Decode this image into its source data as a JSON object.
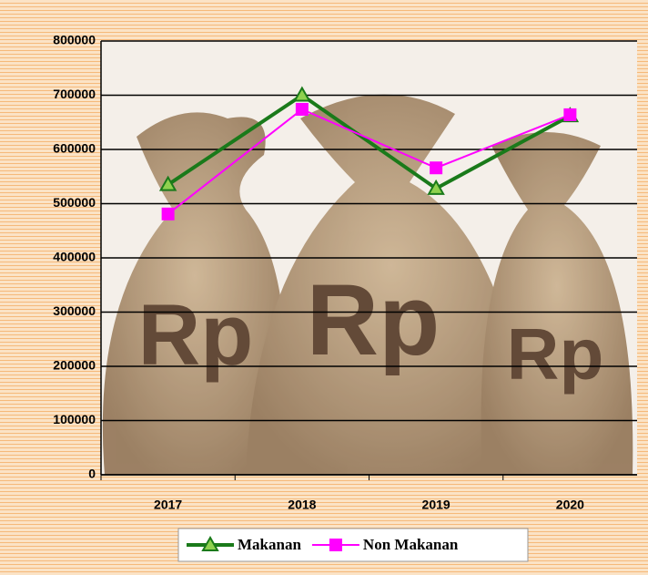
{
  "chart_data": {
    "type": "line",
    "categories": [
      "2017",
      "2018",
      "2019",
      "2020"
    ],
    "series": [
      {
        "name": "Makanan",
        "color": "#1a7a1a",
        "marker": "triangle",
        "marker_color": "#8fd14f",
        "values": [
          535000,
          700000,
          528000,
          662000
        ]
      },
      {
        "name": "Non Makanan",
        "color": "#ff00ff",
        "marker": "square",
        "marker_color": "#ff00ff",
        "values": [
          481000,
          674000,
          566000,
          664000
        ]
      }
    ],
    "ylim": [
      0,
      800000
    ],
    "yticks": [
      0,
      100000,
      200000,
      300000,
      400000,
      500000,
      600000,
      700000,
      800000
    ],
    "grid": true,
    "legend": "bottom"
  }
}
